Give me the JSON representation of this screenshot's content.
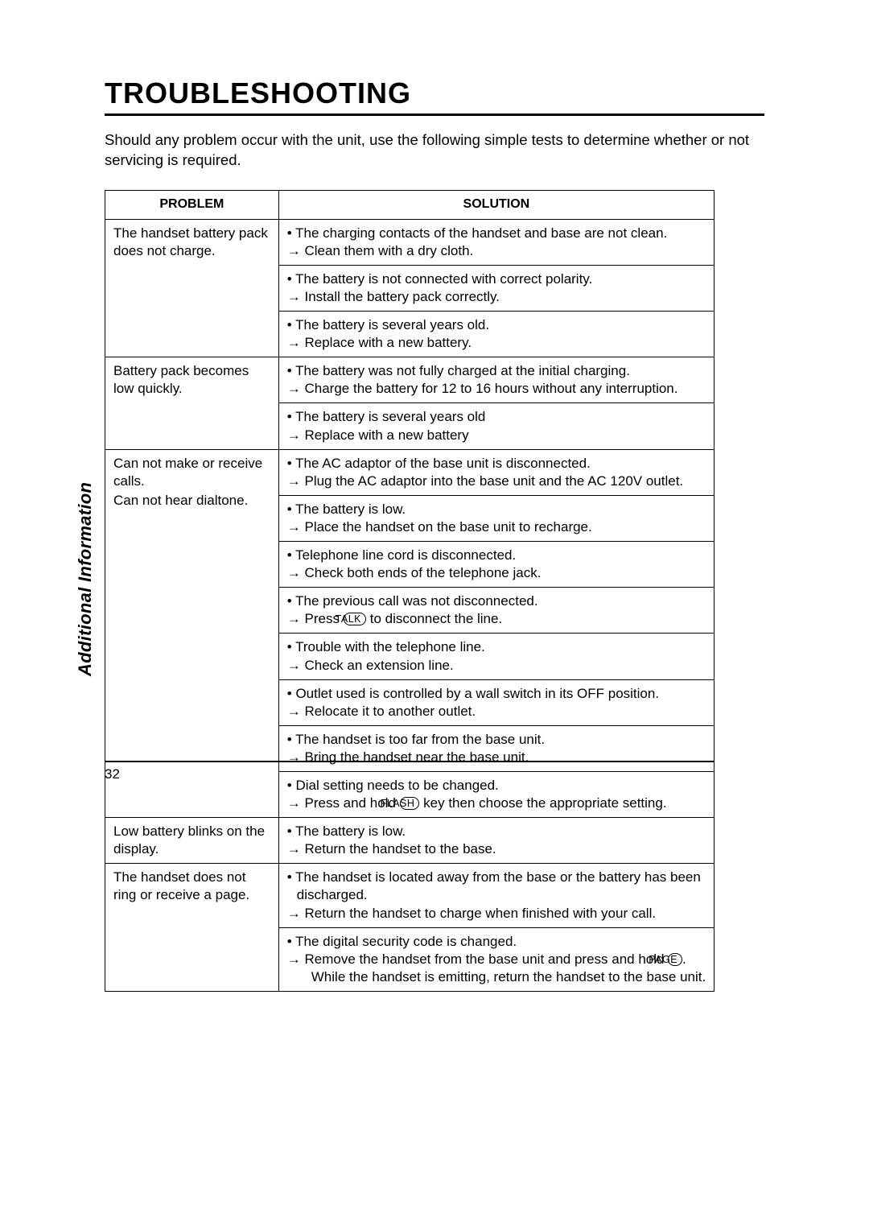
{
  "page": {
    "title": "TROUBLESHOOTING",
    "intro": "Should any problem occur with the unit, use the following simple tests to determine whether or not servicing is required.",
    "sidebar": "Additional Information",
    "page_number": "32",
    "keycaps": {
      "talk": "TALK",
      "flash": "FLASH",
      "page": "PAGE"
    },
    "table": {
      "headers": {
        "problem": "PROBLEM",
        "solution": "SOLUTION"
      },
      "rows": [
        {
          "problem": "The handset battery pack does not charge.",
          "solutions": [
            {
              "bullet": "• The charging contacts of the handset and base are not clean.",
              "action": "→ Clean them with a dry cloth."
            },
            {
              "bullet": "• The battery is not connected with correct polarity.",
              "action": "→ Install the battery pack correctly."
            },
            {
              "bullet": "• The battery is several years old.",
              "action": "→ Replace with a new battery."
            }
          ]
        },
        {
          "problem": "Battery pack becomes low quickly.",
          "solutions": [
            {
              "bullet": "• The battery was not fully charged at the initial charging.",
              "action": "→ Charge the battery for 12 to 16 hours without any interruption."
            },
            {
              "bullet": "• The battery is several years old",
              "action": "→ Replace with a new battery"
            }
          ]
        },
        {
          "problem": "Can not make or receive calls.\nCan not hear dialtone.",
          "solutions": [
            {
              "bullet": "• The AC adaptor of the base unit is disconnected.",
              "action": "→ Plug the AC adaptor into the base unit and the AC 120V outlet."
            },
            {
              "bullet": "• The battery is low.",
              "action": "→ Place the handset on the base unit to recharge."
            },
            {
              "bullet": "• Telephone line cord is disconnected.",
              "action": "→ Check both ends of the telephone jack."
            },
            {
              "bullet": "• The previous call was not disconnected.",
              "action_pre": "→ Press ",
              "key": "talk",
              "action_post": " to disconnect the line."
            },
            {
              "bullet": "• Trouble with the telephone line.",
              "action": "→ Check an extension line."
            },
            {
              "bullet": "• Outlet used is controlled by a wall switch in its OFF position.",
              "action": "→ Relocate it to another outlet."
            },
            {
              "bullet": "• The handset is too far from the base unit.",
              "action": "→ Bring the handset near the base unit."
            },
            {
              "bullet": "• Dial setting needs to be changed.",
              "action_pre": "→ Press and hold ",
              "key": "flash",
              "action_post": "  key then choose the appropriate setting.",
              "indent_cont": true
            }
          ]
        },
        {
          "problem": "Low battery blinks on the display.",
          "solutions": [
            {
              "bullet": "• The battery is low.",
              "action": "→ Return the handset to the base."
            }
          ]
        },
        {
          "problem": "The handset  does not ring or receive a page.",
          "solutions": [
            {
              "bullet": "• The handset is located away from the base or the battery has been discharged.",
              "bullet_indent": true,
              "action": "→ Return the handset to charge when finished with your call."
            },
            {
              "bullet": "• The digital security code is changed.",
              "action_pre": "→ Remove the handset from the base unit and press and hold ",
              "key": "page",
              "action_post": ". While the handset is emitting, return the handset to the base unit.",
              "wrap_indent": true
            }
          ]
        }
      ]
    }
  },
  "style": {
    "background_color": "#ffffff",
    "text_color": "#000000",
    "border_color": "#000000",
    "title_fontsize": 36,
    "body_fontsize": 17,
    "header_fontsize": 16
  }
}
